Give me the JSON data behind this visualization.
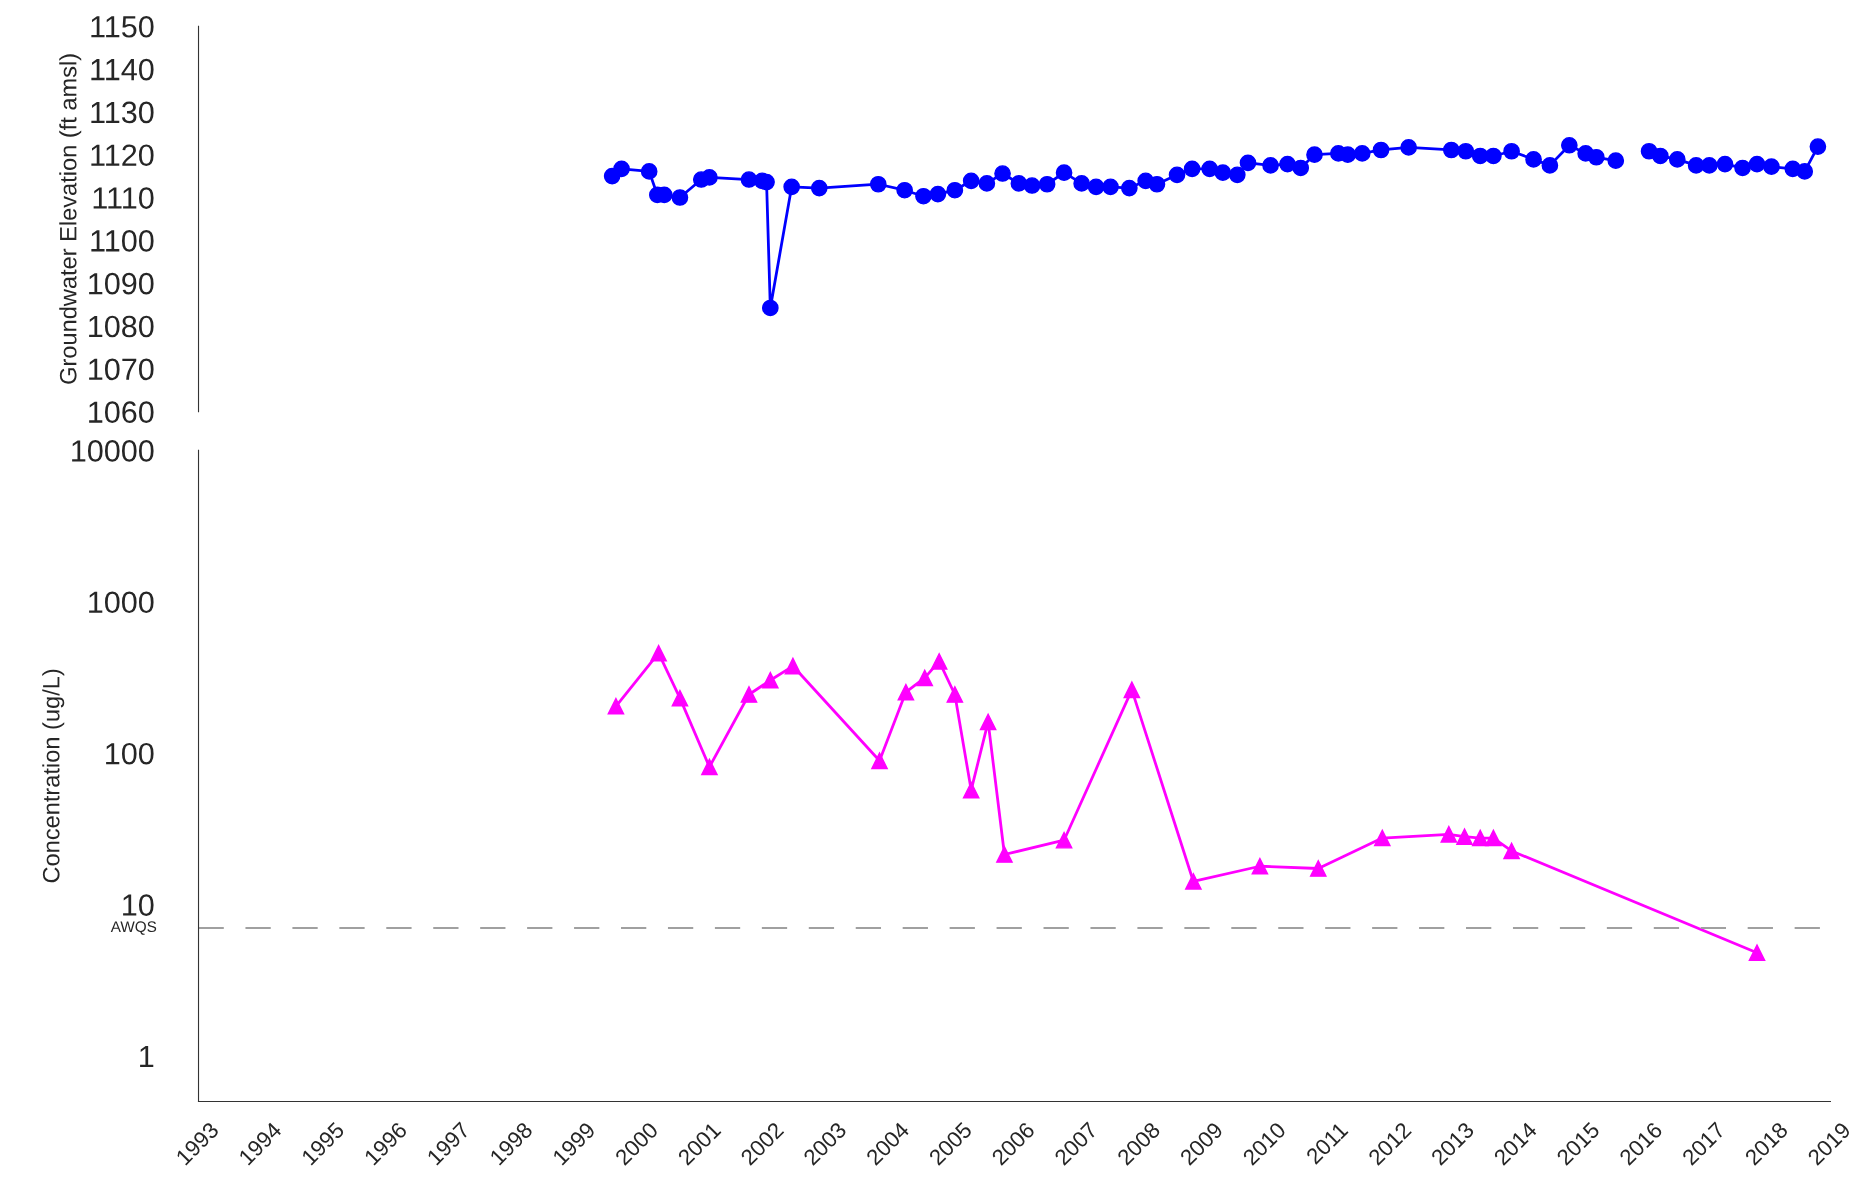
{
  "chart_data": [
    {
      "type": "line",
      "ylabel": "Groundwater Elevation (ft amsl)",
      "xlim": [
        1993,
        2019
      ],
      "ylim": [
        1060,
        1150
      ],
      "yticks": [
        1060,
        1070,
        1080,
        1090,
        1100,
        1110,
        1120,
        1130,
        1140,
        1150
      ],
      "tick_labels": "y",
      "grid": false,
      "legend": false,
      "x": [
        1999.59,
        1999.74,
        2000.18,
        2000.31,
        2000.42,
        2000.67,
        2001.01,
        2001.14,
        2001.77,
        2001.98,
        2002.05,
        2002.11,
        2002.45,
        2002.89,
        2003.83,
        2004.25,
        2004.55,
        2004.78,
        2005.05,
        2005.31,
        2005.56,
        2005.81,
        2006.07,
        2006.28,
        2006.52,
        2006.79,
        2007.07,
        2007.3,
        2007.53,
        2007.83,
        2008.09,
        2008.27,
        2008.59,
        2008.83,
        2009.11,
        2009.32,
        2009.55,
        2009.72,
        2010.08,
        2010.35,
        2010.56,
        2010.78,
        2011.16,
        2011.31,
        2011.54,
        2011.84,
        2012.28,
        2012.96,
        2013.19,
        2013.42,
        2013.63,
        2013.92,
        2014.27,
        2014.53,
        2014.84,
        2015.1,
        2015.27,
        2015.58,
        2015.85,
        2016.11,
        2016.29,
        2016.56,
        2016.86,
        2017.07,
        2017.32,
        2017.6,
        2017.83,
        2018.06,
        2018.4,
        2018.59,
        2018.8
      ],
      "series": [
        {
          "color": "#0000ff",
          "marker": "circle",
          "line_style": "solid",
          "values": [
            1115.0,
            1116.7,
            1116.1,
            1110.6,
            1110.6,
            1110.0,
            1114.2,
            1114.7,
            1114.2,
            1113.9,
            1113.6,
            1084.2,
            1112.5,
            1112.2,
            1113.1,
            1111.7,
            1110.3,
            1110.8,
            1111.7,
            1113.9,
            1113.3,
            1115.6,
            1113.3,
            1112.8,
            1113.1,
            1115.8,
            1113.3,
            1112.5,
            1112.5,
            1112.2,
            1113.9,
            1113.1,
            1115.3,
            1116.7,
            1116.7,
            1115.8,
            1115.3,
            1118.1,
            1117.5,
            1117.8,
            1116.9,
            1120.0,
            1120.3,
            1120.0,
            1120.3,
            1121.1,
            1121.7,
            1121.1,
            1120.8,
            1119.7,
            1119.7,
            1120.8,
            1118.9,
            1117.5,
            1122.2,
            1120.3,
            1119.4,
            1118.6,
            null,
            1120.8,
            1119.7,
            1118.9,
            1117.5,
            1117.5,
            1117.8,
            1116.9,
            1117.8,
            1117.2,
            1116.7,
            1116.1,
            1121.9
          ]
        }
      ]
    },
    {
      "type": "line",
      "ylabel": "Concentration (ug/L)",
      "log": "y",
      "xlim": [
        1993,
        2019
      ],
      "ylim": [
        0.5,
        10000
      ],
      "yticks": [
        1,
        10,
        100,
        1000,
        10000
      ],
      "xticks": [
        1993,
        1994,
        1995,
        1996,
        1997,
        1998,
        1999,
        2000,
        2001,
        2002,
        2003,
        2004,
        2005,
        2006,
        2007,
        2008,
        2009,
        2010,
        2011,
        2012,
        2013,
        2014,
        2015,
        2016,
        2017,
        2018,
        2019
      ],
      "grid": false,
      "legend": false,
      "ref_lines": [
        {
          "axis": "y",
          "value": 7,
          "label": "AWQS",
          "color": "#a0a0a0",
          "line_style": "dashed"
        }
      ],
      "x": [
        1999.65,
        2000.33,
        2000.67,
        2001.14,
        2001.77,
        2002.11,
        2002.47,
        2003.85,
        2004.27,
        2004.57,
        2004.8,
        2005.05,
        2005.31,
        2005.58,
        2005.84,
        2006.79,
        2007.87,
        2008.85,
        2009.91,
        2010.84,
        2011.86,
        2012.92,
        2013.17,
        2013.42,
        2013.63,
        2013.92,
        2017.83
      ],
      "series": [
        {
          "color": "#ff00ff",
          "marker": "triangle",
          "line_style": "solid",
          "values": [
            204,
            458,
            231,
            81,
            244,
            303,
            376,
            89,
            253,
            314,
            404,
            244,
            57,
            161,
            21.4,
            26.6,
            262,
            14.2,
            17.9,
            17.3,
            27.5,
            29.1,
            28.1,
            27.5,
            27.5,
            22.6,
            4.8
          ]
        }
      ]
    }
  ]
}
